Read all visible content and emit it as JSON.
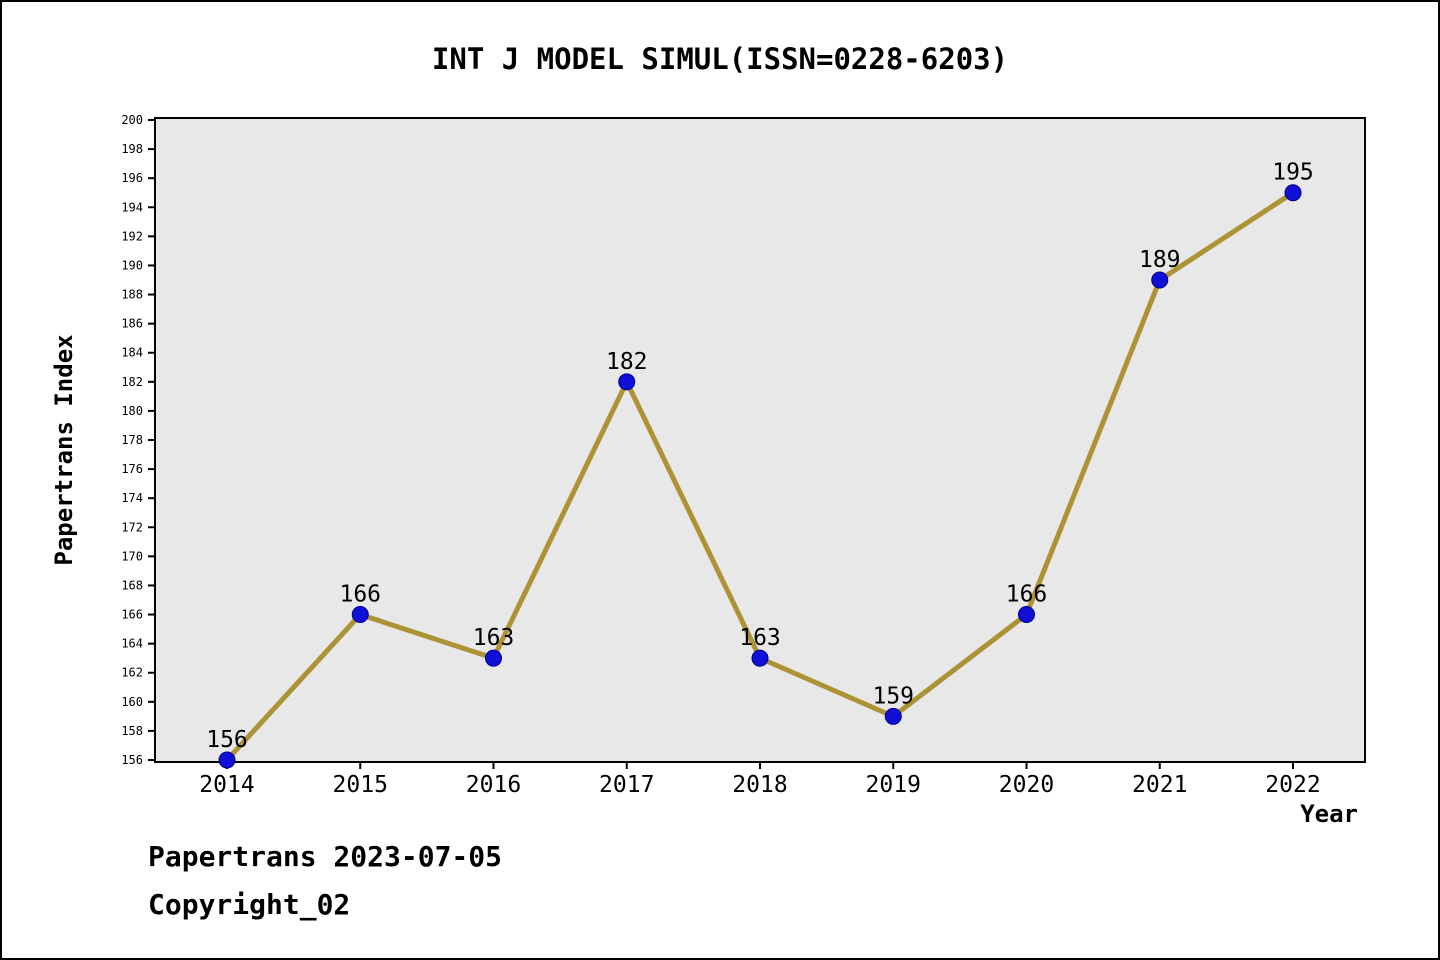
{
  "title": "INT J MODEL SIMUL(ISSN=0228-6203)",
  "footer": {
    "line1": "Papertrans 2023-07-05",
    "line2": "Copyright_02"
  },
  "chart_data": {
    "type": "line",
    "title": "INT J MODEL SIMUL(ISSN=0228-6203)",
    "xlabel": "Year",
    "ylabel": "Papertrans Index",
    "x": [
      2014,
      2015,
      2016,
      2017,
      2018,
      2019,
      2020,
      2021,
      2022
    ],
    "series": [
      {
        "name": "Papertrans Index",
        "values": [
          156,
          166,
          163,
          182,
          163,
          159,
          166,
          189,
          195
        ]
      }
    ],
    "ylim": [
      156,
      200
    ],
    "ytick_step": 2,
    "grid": false,
    "legend": "none",
    "colors": {
      "line": "#ad9335",
      "marker": "#0f0fd6",
      "marker_edge": "#00008b",
      "plot_background": "#e8e8e8",
      "axis": "#000000",
      "label_text": "#000000"
    }
  }
}
